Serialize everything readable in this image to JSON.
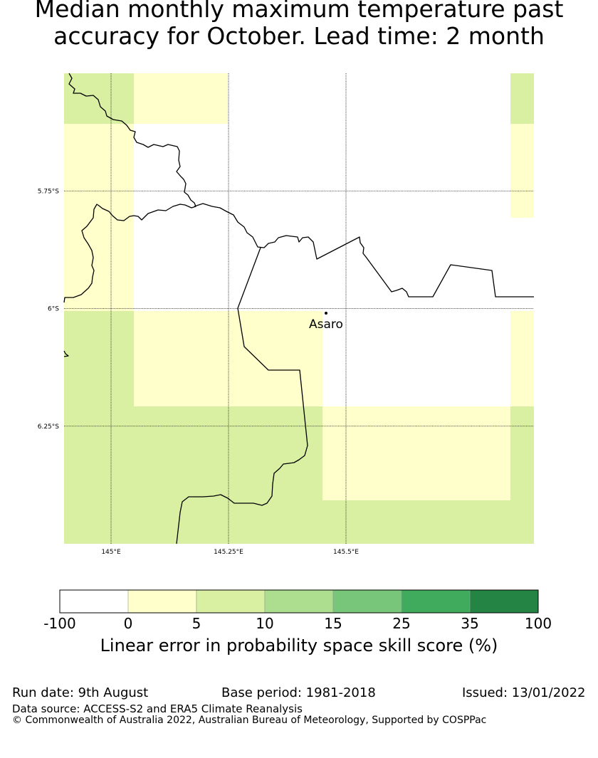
{
  "title": {
    "line1": "Median monthly maximum temperature past",
    "line2": "accuracy for October. Lead time: 2 month"
  },
  "map": {
    "extent": {
      "lon": [
        144.9,
        145.9
      ],
      "lat": [
        -6.5,
        -5.5
      ]
    },
    "grid_step_deg": 0.2,
    "lat_lines": [
      {
        "value": -5.75,
        "label": "5.75°S"
      },
      {
        "value": -6.0,
        "label": "6°S"
      },
      {
        "value": -6.25,
        "label": "6.25°S"
      }
    ],
    "lon_lines": [
      {
        "value": 145.0,
        "label": "145°E"
      },
      {
        "value": 145.25,
        "label": "145.25°E"
      },
      {
        "value": 145.5,
        "label": "145.5°E"
      }
    ],
    "town": {
      "name": "Asaro",
      "lon": 145.055,
      "lat": -6.01
    },
    "cell_categories": [
      [
        2,
        1,
        0,
        0,
        0,
        2
      ],
      [
        1,
        0,
        0,
        0,
        0,
        1
      ],
      [
        1,
        0,
        0,
        0,
        0,
        0
      ],
      [
        2,
        1,
        1,
        0,
        0,
        1
      ],
      [
        2,
        2,
        2,
        1,
        1,
        2
      ],
      [
        2,
        2,
        2,
        2,
        2,
        2
      ]
    ]
  },
  "colorbar": {
    "colors": [
      "#ffffff",
      "#ffffcc",
      "#d9f0a3",
      "#addd8e",
      "#78c679",
      "#41ab5d",
      "#238443"
    ],
    "labels": [
      "-100",
      "0",
      "5",
      "10",
      "15",
      "25",
      "35",
      "100"
    ],
    "title": "Linear error in probability space skill score (%)"
  },
  "footer": {
    "run_date": "Run date: 9th August",
    "base_period": "Base period: 1981-2018",
    "issued": "Issued: 13/01/2022",
    "data_source": "Data source: ACCESS-S2 and ERA5 Climate Reanalysis",
    "copyright": "© Commonwealth of Australia 2022, Australian Bureau of Meteorology, Supported by COSPPac"
  }
}
